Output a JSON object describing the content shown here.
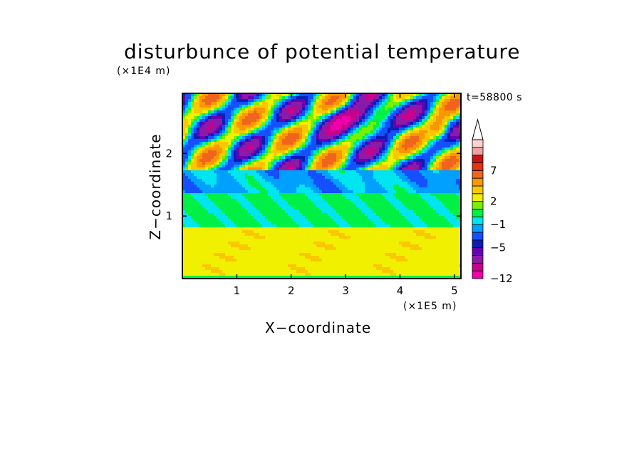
{
  "chart_data": {
    "type": "heatmap",
    "title": "disturbunce of potential temperature",
    "xlabel": "X−coordinate",
    "ylabel": "Z−coordinate",
    "x_unit": "(×1E5 m)",
    "y_unit": "(×1E4 m)",
    "annotation": "t=58800 s",
    "xlim": [
      0,
      5.12
    ],
    "ylim": [
      0,
      2.96
    ],
    "x_ticks": [
      1,
      2,
      3,
      4,
      5
    ],
    "x_tick_labels": [
      "1",
      "2",
      "3",
      "4",
      "5"
    ],
    "y_ticks": [
      1,
      2
    ],
    "y_tick_labels": [
      "1",
      "2"
    ],
    "colorbar": {
      "colors": [
        "#ee00aa",
        "#c8008c",
        "#8c1aa8",
        "#6a00b4",
        "#0a1eb4",
        "#1450ff",
        "#00a0ff",
        "#00e6f0",
        "#00f046",
        "#78f000",
        "#f0f000",
        "#fac800",
        "#fa9600",
        "#f0641e",
        "#e63214",
        "#c81414",
        "#f5a0a0",
        "#ffd2d2"
      ],
      "tick_labels": [
        "−12",
        "−5",
        "−1",
        "2",
        "7"
      ],
      "tick_bounds": [
        0,
        4,
        7,
        10,
        14
      ],
      "extend_top": true
    },
    "layers": [
      {
        "z_range": [
          0.02,
          0.82
        ],
        "value": 1,
        "description_color": "yellow"
      },
      {
        "z_range": [
          0.82,
          1.38
        ],
        "value": 0,
        "description_color": "green"
      },
      {
        "z_range": [
          1.38,
          1.7
        ],
        "value": -1,
        "description_color": "cyan/green"
      },
      {
        "z_range": [
          1.7,
          2.96
        ],
        "value": null,
        "description_color": "wave pattern red/blue"
      }
    ]
  }
}
